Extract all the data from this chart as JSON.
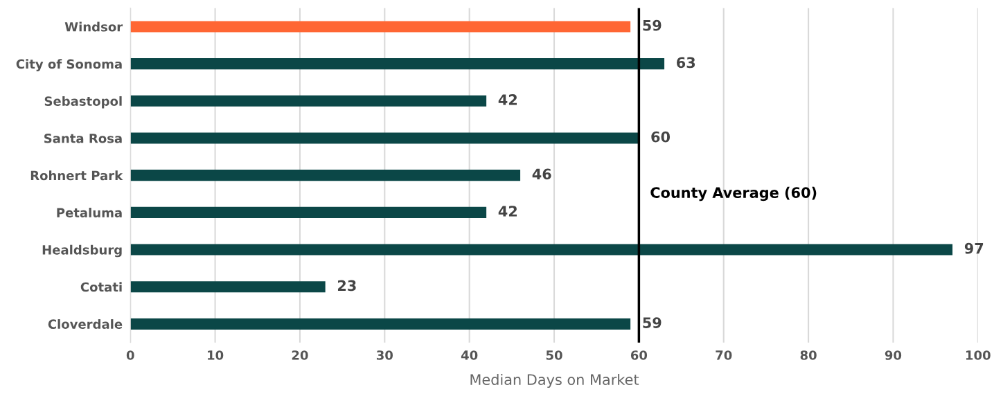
{
  "chart_data": {
    "type": "bar",
    "orientation": "horizontal",
    "xlabel": "Median Days on Market",
    "categories": [
      "Windsor",
      "City of Sonoma",
      "Sebastopol",
      "Santa Rosa",
      "Rohnert Park",
      "Petaluma",
      "Healdsburg",
      "Cotati",
      "Cloverdale"
    ],
    "values": [
      59,
      63,
      42,
      60,
      46,
      42,
      97,
      23,
      59
    ],
    "colors": [
      "#ff6633",
      "#0b4747",
      "#0b4747",
      "#0b4747",
      "#0b4747",
      "#0b4747",
      "#0b4747",
      "#0b4747",
      "#0b4747"
    ],
    "xlim": [
      0,
      100
    ],
    "xticks": [
      0,
      10,
      20,
      30,
      40,
      50,
      60,
      70,
      80,
      90,
      100
    ],
    "grid": "x",
    "data_labels": true,
    "ref_lines": [
      {
        "axis": "x",
        "value": 60,
        "label": "County Average (60)",
        "color": "#000000"
      }
    ]
  }
}
